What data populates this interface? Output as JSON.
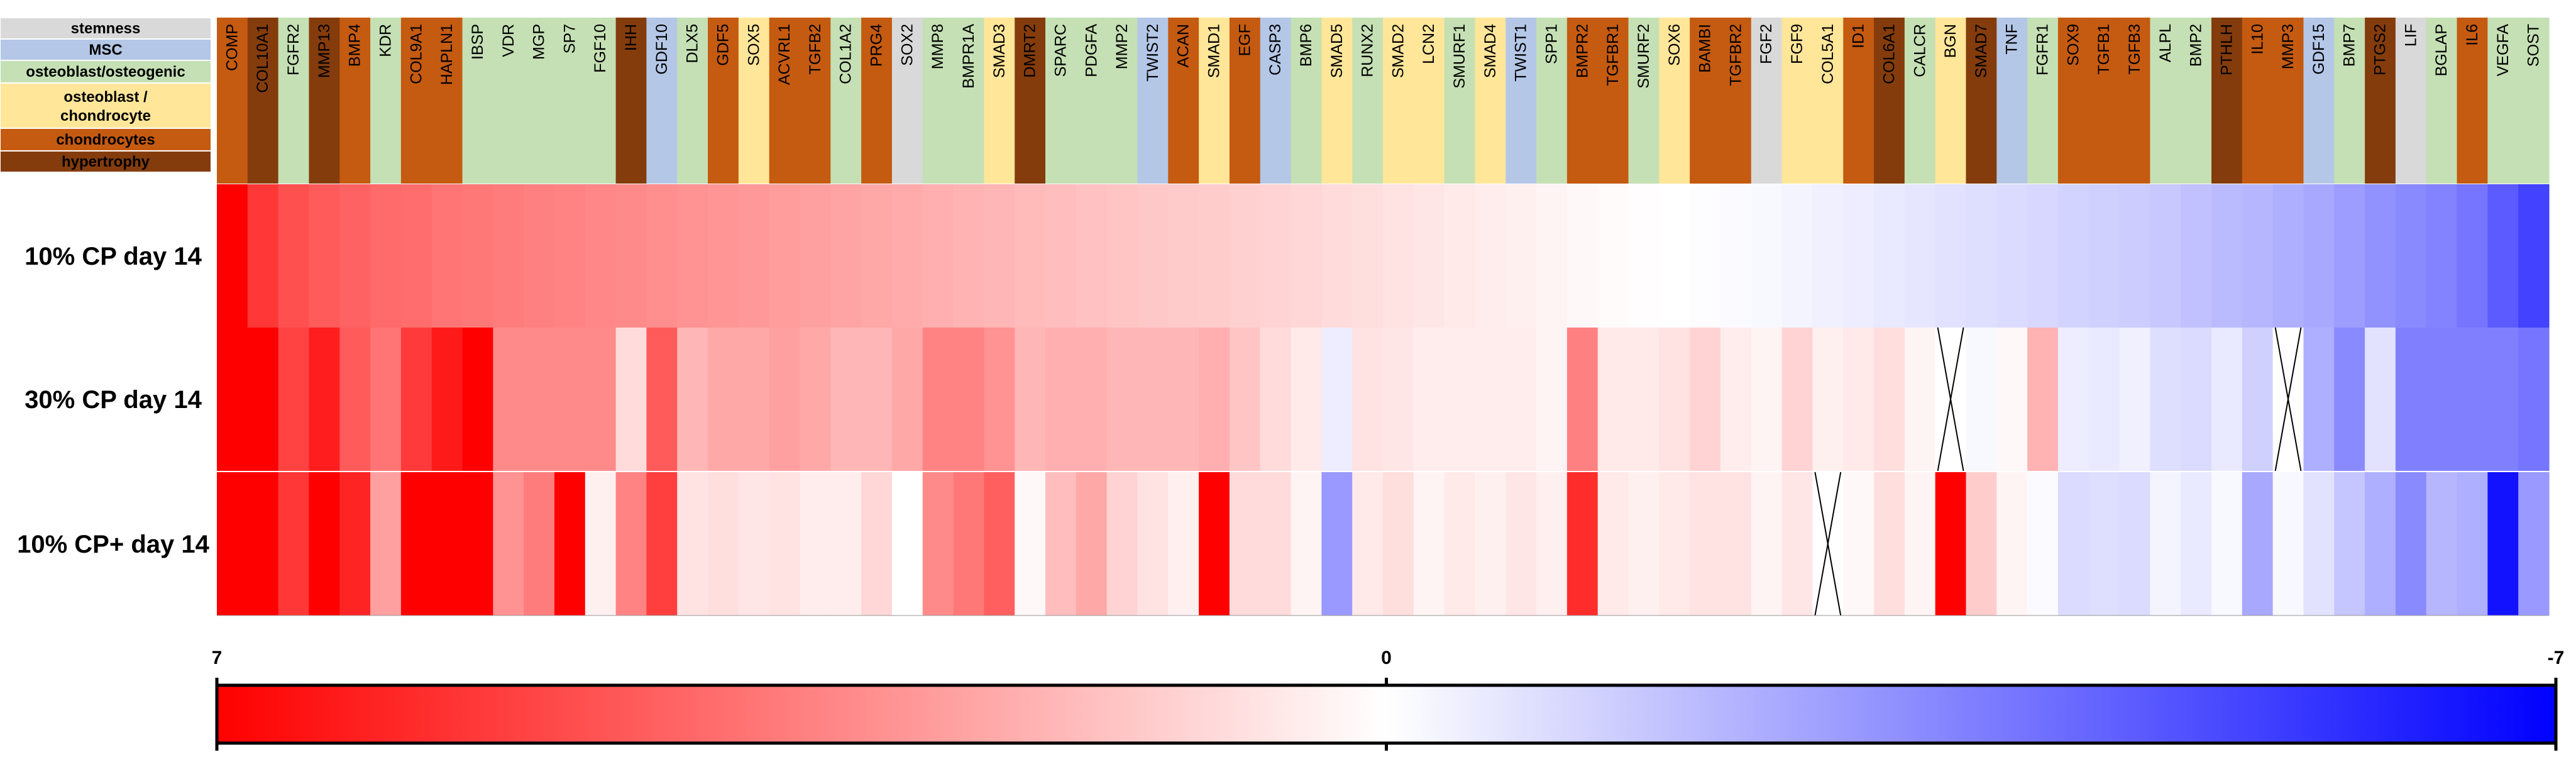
{
  "chart_data": {
    "type": "heatmap",
    "title": "",
    "legend": {
      "title": "",
      "entries": [
        {
          "label": "stemness",
          "color": "#d9d9d9"
        },
        {
          "label": "MSC",
          "color": "#b4c7e7"
        },
        {
          "label": "osteoblast/osteogenic",
          "color": "#c5e0b4"
        },
        {
          "label": "osteoblast /",
          "label_line2": "chondrocyte",
          "color": "#ffe699"
        },
        {
          "label": "chondrocytes",
          "color": "#c55a11"
        },
        {
          "label": "hypertrophy",
          "color": "#843c0c"
        }
      ]
    },
    "category_colors": {
      "stemness": "#d9d9d9",
      "MSC": "#b4c7e7",
      "osteo": "#c5e0b4",
      "ostchon": "#ffe699",
      "chon": "#c55a11",
      "hyper": "#843c0c"
    },
    "genes": [
      {
        "name": "COMP",
        "category": "chon"
      },
      {
        "name": "COL10A1",
        "category": "hyper"
      },
      {
        "name": "FGFR2",
        "category": "osteo"
      },
      {
        "name": "MMP13",
        "category": "hyper"
      },
      {
        "name": "BMP4",
        "category": "chon"
      },
      {
        "name": "KDR",
        "category": "osteo"
      },
      {
        "name": "COL9A1",
        "category": "chon"
      },
      {
        "name": "HAPLN1",
        "category": "chon"
      },
      {
        "name": "IBSP",
        "category": "osteo"
      },
      {
        "name": "VDR",
        "category": "osteo"
      },
      {
        "name": "MGP",
        "category": "osteo"
      },
      {
        "name": "SP7",
        "category": "osteo"
      },
      {
        "name": "FGF10",
        "category": "osteo"
      },
      {
        "name": "IHH",
        "category": "hyper"
      },
      {
        "name": "GDF10",
        "category": "MSC"
      },
      {
        "name": "DLX5",
        "category": "osteo"
      },
      {
        "name": "GDF5",
        "category": "chon"
      },
      {
        "name": "SOX5",
        "category": "ostchon"
      },
      {
        "name": "ACVRL1",
        "category": "chon"
      },
      {
        "name": "TGFB2",
        "category": "chon"
      },
      {
        "name": "COL1A2",
        "category": "osteo"
      },
      {
        "name": "PRG4",
        "category": "chon"
      },
      {
        "name": "SOX2",
        "category": "stemness"
      },
      {
        "name": "MMP8",
        "category": "osteo"
      },
      {
        "name": "BMPR1A",
        "category": "osteo"
      },
      {
        "name": "SMAD3",
        "category": "ostchon"
      },
      {
        "name": "DMRT2",
        "category": "hyper"
      },
      {
        "name": "SPARC",
        "category": "osteo"
      },
      {
        "name": "PDGFA",
        "category": "osteo"
      },
      {
        "name": "MMP2",
        "category": "osteo"
      },
      {
        "name": "TWIST2",
        "category": "MSC"
      },
      {
        "name": "ACAN",
        "category": "chon"
      },
      {
        "name": "SMAD1",
        "category": "ostchon"
      },
      {
        "name": "EGF",
        "category": "chon"
      },
      {
        "name": "CASP3",
        "category": "MSC"
      },
      {
        "name": "BMP6",
        "category": "osteo"
      },
      {
        "name": "SMAD5",
        "category": "ostchon"
      },
      {
        "name": "RUNX2",
        "category": "osteo"
      },
      {
        "name": "SMAD2",
        "category": "ostchon"
      },
      {
        "name": "LCN2",
        "category": "ostchon"
      },
      {
        "name": "SMURF1",
        "category": "osteo"
      },
      {
        "name": "SMAD4",
        "category": "ostchon"
      },
      {
        "name": "TWIST1",
        "category": "MSC"
      },
      {
        "name": "SPP1",
        "category": "osteo"
      },
      {
        "name": "BMPR2",
        "category": "chon"
      },
      {
        "name": "TGFBR1",
        "category": "chon"
      },
      {
        "name": "SMURF2",
        "category": "osteo"
      },
      {
        "name": "SOX6",
        "category": "ostchon"
      },
      {
        "name": "BAMBI",
        "category": "chon"
      },
      {
        "name": "TGFBR2",
        "category": "chon"
      },
      {
        "name": "FGF2",
        "category": "stemness"
      },
      {
        "name": "FGF9",
        "category": "ostchon"
      },
      {
        "name": "COL5A1",
        "category": "ostchon"
      },
      {
        "name": "ID1",
        "category": "chon"
      },
      {
        "name": "COL6A1",
        "category": "hyper"
      },
      {
        "name": "CALCR",
        "category": "osteo"
      },
      {
        "name": "BGN",
        "category": "ostchon"
      },
      {
        "name": "SMAD7",
        "category": "hyper"
      },
      {
        "name": "TNF",
        "category": "MSC"
      },
      {
        "name": "FGFR1",
        "category": "osteo"
      },
      {
        "name": "SOX9",
        "category": "chon"
      },
      {
        "name": "TGFB1",
        "category": "chon"
      },
      {
        "name": "TGFB3",
        "category": "chon"
      },
      {
        "name": "ALPL",
        "category": "osteo"
      },
      {
        "name": "BMP2",
        "category": "osteo"
      },
      {
        "name": "PTHLH",
        "category": "hyper"
      },
      {
        "name": "IL10",
        "category": "chon"
      },
      {
        "name": "MMP3",
        "category": "chon"
      },
      {
        "name": "GDF15",
        "category": "MSC"
      },
      {
        "name": "BMP7",
        "category": "osteo"
      },
      {
        "name": "PTGS2",
        "category": "hyper"
      },
      {
        "name": "LIF",
        "category": "stemness"
      },
      {
        "name": "BGLAP",
        "category": "osteo"
      },
      {
        "name": "IL6",
        "category": "chon"
      },
      {
        "name": "VEGFA",
        "category": "osteo"
      },
      {
        "name": "SOST",
        "category": "osteo"
      }
    ],
    "rows": [
      {
        "label": "10% CP day 14",
        "values": [
          7,
          5.5,
          4.8,
          4.5,
          4.3,
          4.1,
          4.0,
          3.8,
          3.7,
          3.6,
          3.5,
          3.4,
          3.3,
          3.2,
          3.1,
          3.0,
          2.9,
          2.8,
          2.7,
          2.6,
          2.5,
          2.4,
          2.3,
          2.2,
          2.1,
          2.0,
          1.9,
          1.8,
          1.7,
          1.6,
          1.5,
          1.45,
          1.4,
          1.3,
          1.2,
          1.1,
          1.0,
          0.9,
          0.8,
          0.7,
          0.6,
          0.5,
          0.4,
          0.3,
          0.2,
          0.1,
          0.05,
          0,
          -0.05,
          -0.1,
          -0.2,
          -0.3,
          -0.4,
          -0.5,
          -0.6,
          -0.7,
          -0.8,
          -0.9,
          -1.0,
          -1.1,
          -1.2,
          -1.3,
          -1.4,
          -1.5,
          -1.7,
          -1.9,
          -2.0,
          -2.2,
          -2.4,
          -2.7,
          -3.0,
          -3.2,
          -3.4,
          -3.8,
          -4.5,
          -5.2
        ]
      },
      {
        "label": "30% CP day 14",
        "values": [
          7,
          7,
          5.2,
          6.2,
          4.5,
          3.8,
          5.4,
          6.3,
          7,
          3.2,
          3.2,
          3.2,
          3.2,
          1.0,
          4.5,
          2.0,
          2.4,
          2.4,
          2.6,
          2.4,
          2.0,
          2.0,
          2.4,
          3.4,
          3.4,
          3.0,
          2.0,
          2.2,
          2.2,
          2.0,
          2.0,
          2.0,
          2.2,
          1.6,
          1.0,
          0.6,
          -0.5,
          0.8,
          0.7,
          0.5,
          0.5,
          0.5,
          0.5,
          0.3,
          3.5,
          0.6,
          0.6,
          0.8,
          1.2,
          0.5,
          0.3,
          1.2,
          0.4,
          0.6,
          0.9,
          0.3,
          null,
          -0.2,
          0.2,
          2.1,
          -0.5,
          -0.6,
          -0.4,
          -0.9,
          -1.0,
          -0.6,
          -1.3,
          null,
          -2.2,
          -3.2,
          -0.8,
          -3.5,
          -3.5,
          -3.5,
          -3.5,
          -3.8
        ]
      },
      {
        "label": "10% CP+ day 14",
        "values": [
          7,
          7,
          5.5,
          7,
          6.0,
          2.6,
          7,
          7,
          7,
          3.0,
          3.6,
          7,
          0.4,
          3.4,
          5.3,
          0.8,
          0.9,
          0.7,
          0.8,
          0.5,
          0.5,
          1.1,
          0,
          3.2,
          3.7,
          4.4,
          0.2,
          1.8,
          2.4,
          1.2,
          0.8,
          0.4,
          7,
          1.0,
          1.0,
          0.3,
          -2.8,
          0.6,
          0.9,
          0.3,
          0.6,
          0.4,
          0.7,
          0.4,
          5.8,
          0.6,
          0.4,
          0.6,
          0.8,
          0.8,
          0.3,
          0.7,
          null,
          0.2,
          0.9,
          0.3,
          7,
          1.4,
          0.3,
          -0.1,
          -1.0,
          -0.9,
          -1.0,
          -0.3,
          -0.6,
          -0.2,
          -2.4,
          -0.2,
          -0.8,
          -1.6,
          -2.2,
          -3.2,
          -2.0,
          -2.2,
          -6.5,
          -2.8
        ]
      }
    ],
    "colorbar": {
      "min": -7,
      "max": 7,
      "center": 0,
      "tick_labels": [
        "7",
        "0",
        "-7"
      ],
      "colors": {
        "high": "#ff0000",
        "mid": "#ffffff",
        "low": "#0000ff"
      }
    }
  }
}
